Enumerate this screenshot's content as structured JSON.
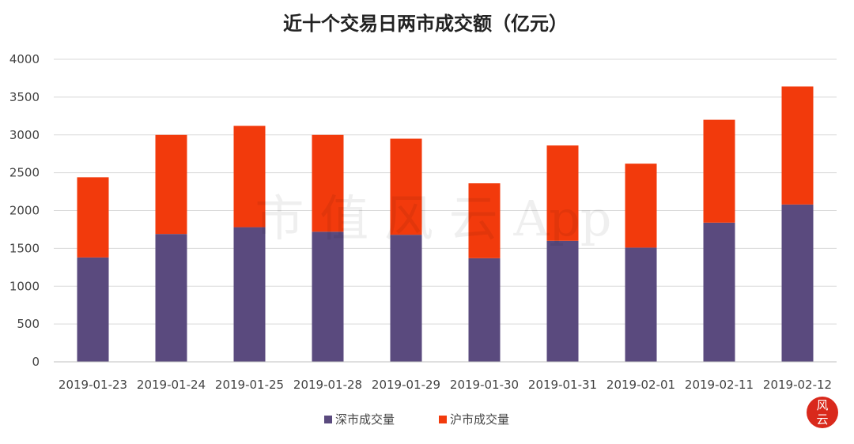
{
  "chart_data": {
    "type": "bar",
    "stacked": true,
    "title": "近十个交易日两市成交额（亿元）",
    "categories": [
      "2019-01-23",
      "2019-01-24",
      "2019-01-25",
      "2019-01-28",
      "2019-01-29",
      "2019-01-30",
      "2019-01-31",
      "2019-02-01",
      "2019-02-11",
      "2019-02-12"
    ],
    "series": [
      {
        "name": "深市成交量",
        "color": "#5a4a7e",
        "values": [
          1380,
          1690,
          1780,
          1720,
          1680,
          1370,
          1600,
          1510,
          1840,
          2080
        ]
      },
      {
        "name": "沪市成交量",
        "color": "#f23a0c",
        "values": [
          1060,
          1310,
          1340,
          1280,
          1270,
          990,
          1260,
          1110,
          1360,
          1560
        ]
      }
    ],
    "ylim": [
      0,
      4000
    ],
    "yticks": [
      0,
      500,
      1000,
      1500,
      2000,
      2500,
      3000,
      3500,
      4000
    ],
    "grid": true,
    "legend_position": "bottom-center"
  },
  "watermark": "市 值 风 云 App",
  "seal": {
    "color": "#d9291c",
    "glyph1": "风",
    "glyph2": "云"
  }
}
